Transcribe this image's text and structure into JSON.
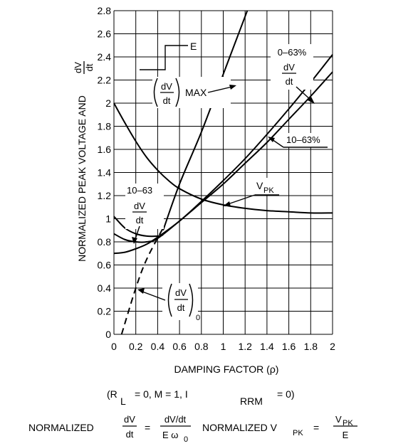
{
  "chart_data": {
    "type": "line",
    "xlabel": "DAMPING FACTOR (ρ)",
    "ylabel": "NORMALIZED PEAK VOLTAGE AND",
    "ylabel_frac": {
      "num": "dV",
      "den": "dt"
    },
    "xlim": [
      0,
      2
    ],
    "ylim": [
      0,
      2.8
    ],
    "x_ticks": [
      "0",
      "0.2",
      "0.4",
      "0.6",
      "0.8",
      "1",
      "1.2",
      "1.4",
      "1.6",
      "1.8",
      "2"
    ],
    "y_ticks": [
      "0",
      "0.2",
      "0.4",
      "0.6",
      "0.8",
      "1",
      "1.2",
      "1.4",
      "1.6",
      "1.8",
      "2",
      "2.2",
      "2.4",
      "2.6",
      "2.8"
    ],
    "grid": true,
    "series": [
      {
        "name": "dV/dt MAX",
        "points": [
          [
            0.45,
            0.9
          ],
          [
            0.6,
            1.3
          ],
          [
            0.8,
            1.75
          ],
          [
            1.0,
            2.25
          ],
          [
            1.12,
            2.55
          ],
          [
            1.22,
            2.8
          ]
        ]
      },
      {
        "name": "0-63% dV/dt",
        "points": [
          [
            0,
            0.7
          ],
          [
            0.1,
            0.71
          ],
          [
            0.2,
            0.74
          ],
          [
            0.3,
            0.78
          ],
          [
            0.4,
            0.84
          ],
          [
            0.6,
            0.98
          ],
          [
            0.8,
            1.15
          ],
          [
            1.0,
            1.33
          ],
          [
            1.2,
            1.52
          ],
          [
            1.4,
            1.73
          ],
          [
            1.6,
            1.95
          ],
          [
            1.8,
            2.18
          ],
          [
            2.0,
            2.42
          ]
        ]
      },
      {
        "name": "10-63% dV/dt",
        "points": [
          [
            0,
            0.87
          ],
          [
            0.1,
            0.82
          ],
          [
            0.2,
            0.8
          ],
          [
            0.3,
            0.8
          ],
          [
            0.4,
            0.83
          ],
          [
            0.6,
            0.98
          ],
          [
            0.8,
            1.14
          ],
          [
            1.0,
            1.3
          ],
          [
            1.2,
            1.48
          ],
          [
            1.4,
            1.66
          ],
          [
            1.6,
            1.86
          ],
          [
            1.8,
            2.06
          ],
          [
            2.0,
            2.27
          ]
        ]
      },
      {
        "name": "VPK",
        "points": [
          [
            0,
            2.0
          ],
          [
            0.1,
            1.83
          ],
          [
            0.2,
            1.67
          ],
          [
            0.3,
            1.53
          ],
          [
            0.4,
            1.42
          ],
          [
            0.5,
            1.33
          ],
          [
            0.6,
            1.26
          ],
          [
            0.8,
            1.17
          ],
          [
            1.0,
            1.12
          ],
          [
            1.2,
            1.09
          ],
          [
            1.4,
            1.07
          ],
          [
            1.6,
            1.06
          ],
          [
            1.8,
            1.05
          ],
          [
            2.0,
            1.05
          ]
        ]
      },
      {
        "name": "VPK lower branch",
        "points": [
          [
            0,
            1.02
          ],
          [
            0.1,
            0.92
          ],
          [
            0.2,
            0.87
          ],
          [
            0.3,
            0.85
          ],
          [
            0.4,
            0.85
          ],
          [
            0.45,
            0.86
          ]
        ]
      },
      {
        "name": "(dV/dt)0",
        "style": "dashed",
        "points": [
          [
            0.07,
            0
          ],
          [
            0.2,
            0.4
          ],
          [
            0.3,
            0.65
          ],
          [
            0.45,
            0.92
          ]
        ]
      }
    ],
    "annotations": {
      "E": "E",
      "max_word": "MAX",
      "dvdt_num": "dV",
      "dvdt_den": "dt",
      "label_0_63": "0–63%",
      "label_10_63_pct": "10–63%",
      "label_10_63": "10–63",
      "vpk_v": "V",
      "vpk_sub": "PK",
      "zero_sub": "0"
    },
    "conditions": {
      "open": "(R",
      "r_sub": "L",
      "mid": "= 0,  M = 1,  I",
      "i_sub": "RRM",
      "close": "= 0)"
    },
    "formula": {
      "lhs_word": "NORMALIZED",
      "lhs_num": "dV",
      "lhs_den": "dt",
      "eq": "=",
      "rhs_num": "dV/dt",
      "rhs_den_e": "E ω",
      "rhs_den_sub": "0",
      "rhs2_word": "NORMALIZED V",
      "rhs2_sub": "PK",
      "rhs2_num": "V",
      "rhs2_num_sub": "PK",
      "rhs2_den": "E"
    }
  }
}
